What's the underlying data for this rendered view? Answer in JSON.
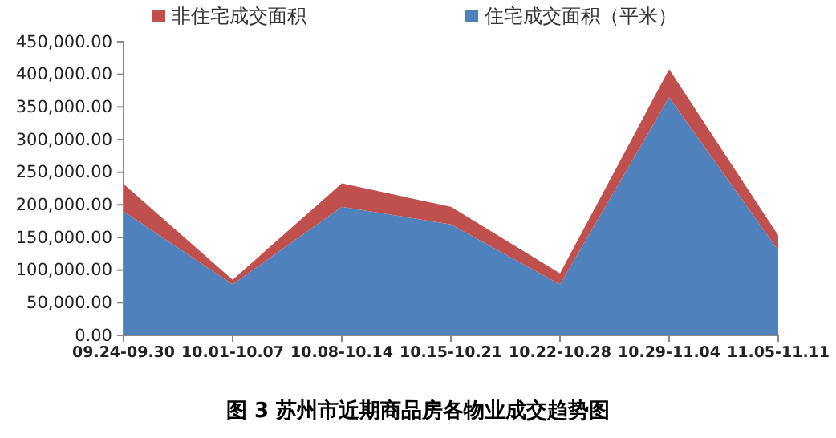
{
  "chart_data": {
    "type": "area",
    "title": "图 3  苏州市近期商品房各物业成交趋势图",
    "stacked": true,
    "categories": [
      "09.24-09.30",
      "10.01-10.07",
      "10.08-10.14",
      "10.15-10.21",
      "10.22-10.28",
      "10.29-11.04",
      "11.05-11.11"
    ],
    "series": [
      {
        "name": "住宅成交面积（平米）",
        "color": "#4f81bd",
        "values": [
          190000,
          78000,
          197000,
          170000,
          78000,
          365000,
          130000
        ]
      },
      {
        "name": "非住宅成交面积",
        "color": "#c0504d",
        "values": [
          42000,
          7000,
          36000,
          27000,
          17000,
          43000,
          23000
        ]
      }
    ],
    "ylim": [
      0,
      450000
    ],
    "yticks": [
      {
        "value": 0,
        "label": "0.00"
      },
      {
        "value": 50000,
        "label": "50,000.00"
      },
      {
        "value": 100000,
        "label": "100,000.00"
      },
      {
        "value": 150000,
        "label": "150,000.00"
      },
      {
        "value": 200000,
        "label": "200,000.00"
      },
      {
        "value": 250000,
        "label": "250,000.00"
      },
      {
        "value": 300000,
        "label": "300,000.00"
      },
      {
        "value": 350000,
        "label": "350,000.00"
      },
      {
        "value": 400000,
        "label": "400,000.00"
      },
      {
        "value": 450000,
        "label": "450,000.00"
      }
    ],
    "legend": "top",
    "grid": false
  }
}
